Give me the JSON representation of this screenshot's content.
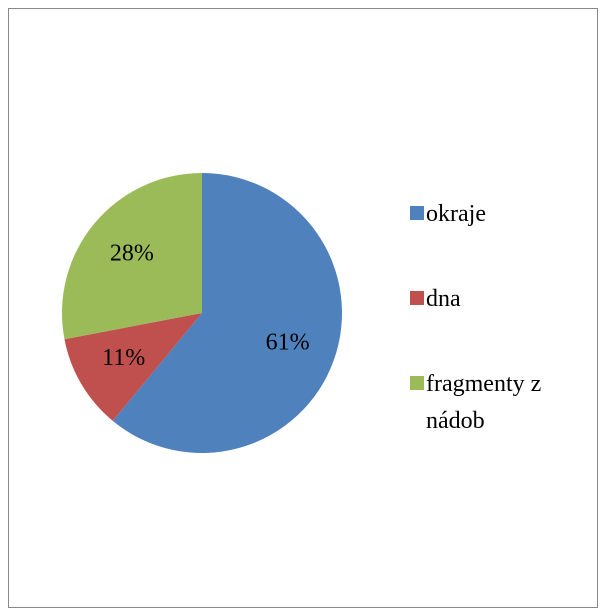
{
  "chart_data": {
    "type": "pie",
    "categories": [
      "okraje",
      "dna",
      "fragmenty z nádob"
    ],
    "values": [
      61,
      11,
      28
    ],
    "value_labels": [
      "61%",
      "11%",
      "28%"
    ],
    "colors": [
      "#4f81bd",
      "#c0504d",
      "#9bbb59"
    ],
    "legend": "right"
  }
}
